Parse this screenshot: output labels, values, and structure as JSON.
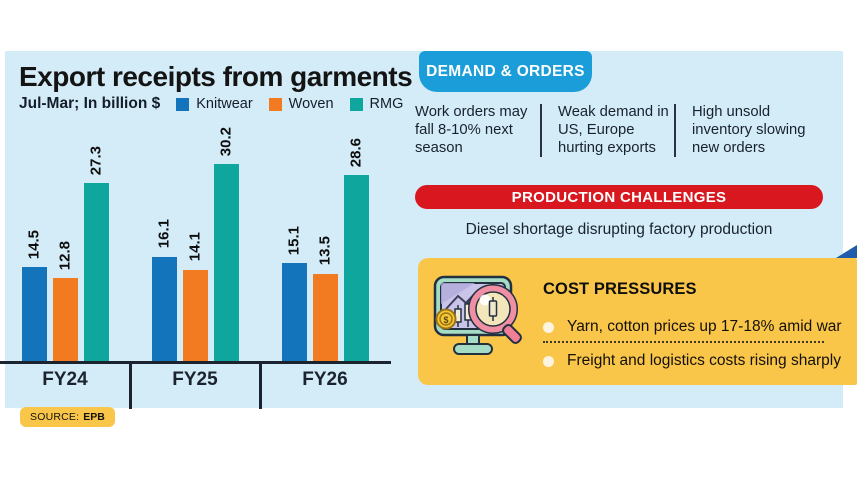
{
  "chart_data": {
    "type": "bar",
    "title": "Export receipts from garments",
    "subtitle": "Jul-Mar; In billion $",
    "categories": [
      "FY24",
      "FY25",
      "FY26"
    ],
    "series": [
      {
        "name": "Knitwear",
        "color": "#1373bb",
        "values": [
          14.5,
          16.1,
          15.1
        ]
      },
      {
        "name": "Woven",
        "color": "#f27b21",
        "values": [
          12.8,
          14.1,
          13.5
        ]
      },
      {
        "name": "RMG",
        "color": "#0fa69e",
        "values": [
          27.3,
          30.2,
          28.6
        ]
      }
    ],
    "ylim": [
      0,
      32
    ],
    "grid": false,
    "legend_position": "top",
    "value_labels": "rotated-above-bars",
    "source": "EPB"
  },
  "source_badge": {
    "label": "SOURCE:",
    "value": "EPB"
  },
  "demand": {
    "badge": "DEMAND & ORDERS",
    "items": [
      "Work orders may fall 8-10% next season",
      "Weak demand in US, Europe hurting exports",
      "High unsold inventory slowing new orders"
    ]
  },
  "production": {
    "badge": "PRODUCTION CHALLENGES",
    "note": "Diesel shortage disrupting factory production"
  },
  "cost": {
    "title": "COST PRESSURES",
    "items": [
      "Yarn, cotton prices up 17-18% amid war",
      "Freight and logistics costs rising sharply"
    ],
    "icon": "monitor-analytics-magnifier-icon"
  },
  "colors": {
    "background": "#ffffff",
    "panel": "#d4ecf7",
    "knitwear_bar": "#1373bb",
    "woven_bar": "#f27b21",
    "rmg_bar": "#0fa69e",
    "demand_badge": "#1b9dd9",
    "production_banner": "#d9171f",
    "cost_box": "#f9c64a",
    "source_badge": "#f9c64a",
    "corner_triangle": "#1f5ca9",
    "text_dark": "#18222e"
  }
}
